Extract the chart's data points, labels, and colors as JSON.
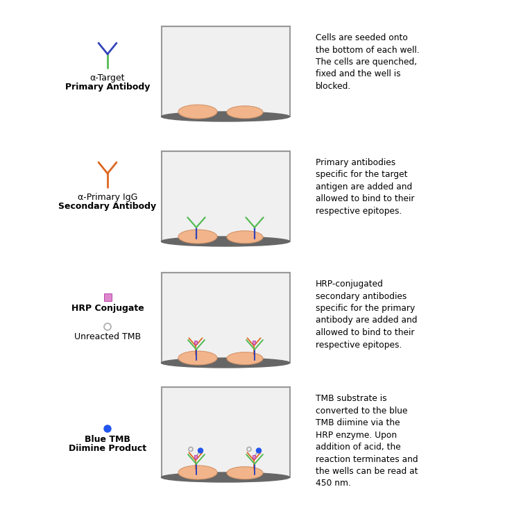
{
  "background_color": "#ffffff",
  "rows": [
    {
      "legend_label1": "α-Target",
      "legend_label2": "Primary Antibody",
      "description": "Cells are seeded onto\nthe bottom of each well.\nThe cells are quenched,\nfixed and the well is\nblocked.",
      "well_type": "empty_cells"
    },
    {
      "legend_label1": "α-Primary IgG",
      "legend_label2": "Secondary Antibody",
      "description": "Primary antibodies\nspecific for the target\nantigen are added and\nallowed to bind to their\nrespective epitopes.",
      "well_type": "primary_antibody"
    },
    {
      "legend_label1": "HRP Conjugate",
      "legend_label2": "",
      "description": "HRP-conjugated\nsecondary antibodies\nspecific for the primary\nantibody are added and\nallowed to bind to their\nrespective epitopes.",
      "well_type": "secondary_antibody"
    },
    {
      "legend_label1": "Blue TMB",
      "legend_label2": "Diimine Product",
      "description": "TMB substrate is\nconverted to the blue\nTMB diimine via the\nHRP enzyme. Upon\naddition of acid, the\nreaction terminates and\nthe wells can be read at\n450 nm.",
      "well_type": "tmb_product"
    }
  ],
  "hrp_label": "HRP Conjugate",
  "unreacted_label": "Unreacted TMB",
  "cell_color": "#f2b48a",
  "cell_edge_color": "#d4956a",
  "well_bg": "#f0f0f0",
  "well_border": "#999999",
  "well_bottom_dark": "#666666",
  "green_fab": "#55bb55",
  "blue_stem": "#3344bb",
  "orange_color": "#dd6622",
  "pink_hrp": "#dd88cc",
  "pink_hrp_edge": "#bb44aa",
  "bright_blue": "#2255ee",
  "tmb_ring_color": "#aaaaaa"
}
